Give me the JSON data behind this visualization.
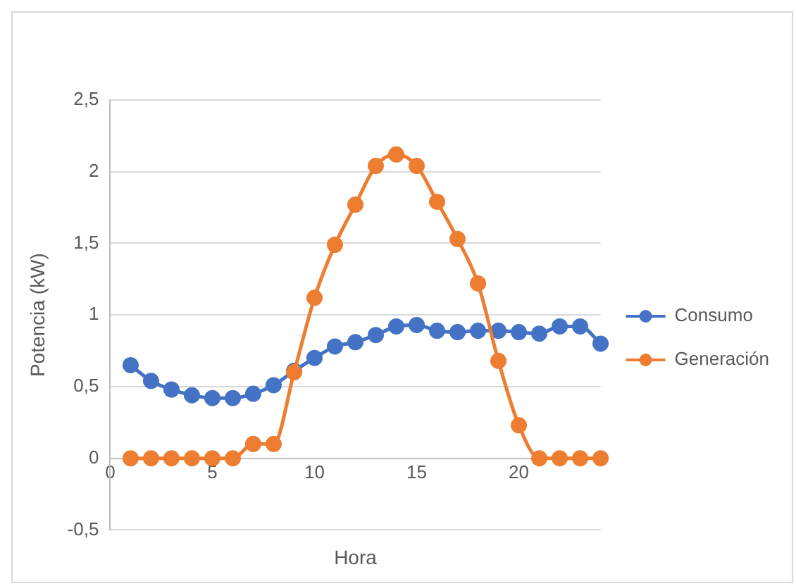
{
  "chart_data": {
    "type": "line",
    "xlabel": "Hora",
    "ylabel": "Potencia (kW)",
    "x": [
      1,
      2,
      3,
      4,
      5,
      6,
      7,
      8,
      9,
      10,
      11,
      12,
      13,
      14,
      15,
      16,
      17,
      18,
      19,
      20,
      21,
      22,
      23,
      24
    ],
    "series": [
      {
        "name": "Consumo",
        "color": "#4472c4",
        "values": [
          0.65,
          0.54,
          0.48,
          0.44,
          0.42,
          0.42,
          0.45,
          0.51,
          0.61,
          0.7,
          0.78,
          0.81,
          0.86,
          0.92,
          0.93,
          0.89,
          0.88,
          0.89,
          0.89,
          0.88,
          0.87,
          0.92,
          0.92,
          0.8
        ]
      },
      {
        "name": "Generación",
        "color": "#ed7d31",
        "values": [
          0,
          0,
          0,
          0,
          0,
          0,
          0.1,
          0.1,
          0.6,
          1.12,
          1.49,
          1.77,
          2.04,
          2.12,
          2.04,
          1.79,
          1.53,
          1.22,
          0.68,
          0.23,
          0,
          0,
          0,
          0
        ]
      }
    ],
    "xlim": [
      0,
      24
    ],
    "xticks": [
      0,
      5,
      10,
      15,
      20
    ],
    "ylim": [
      -0.5,
      2.5
    ],
    "yticks": [
      {
        "value": -0.5,
        "label": "-0,5"
      },
      0,
      {
        "value": 0.5,
        "label": "0,5"
      },
      1,
      {
        "value": 1.5,
        "label": "1,5"
      },
      2,
      {
        "value": 2.5,
        "label": "2,5"
      }
    ],
    "grid": "y",
    "legend": "right",
    "marker": "circle",
    "line_style": "solid"
  }
}
